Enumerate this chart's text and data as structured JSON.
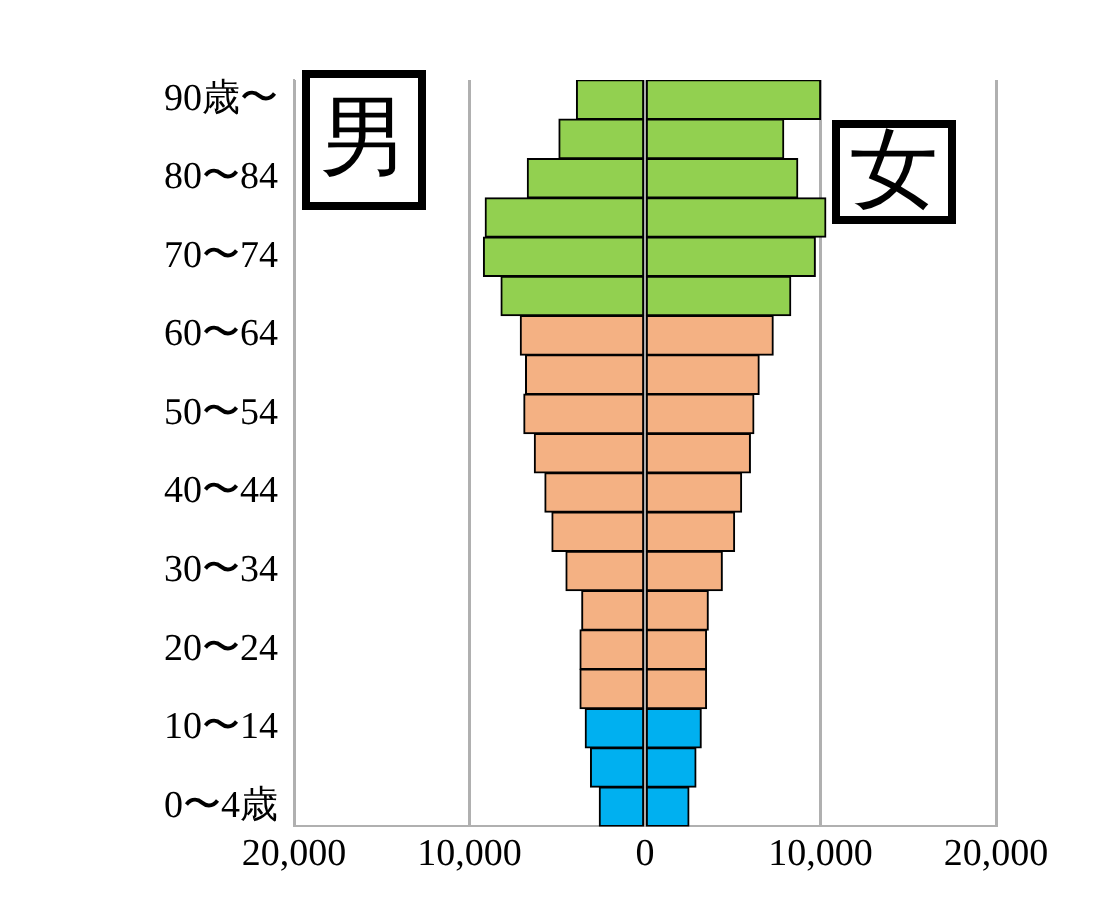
{
  "chart_data": {
    "type": "bar",
    "orientation": "horizontal",
    "stacked": true,
    "grid": "x",
    "legend": false,
    "categories": [
      "90歳〜",
      null,
      "80〜84",
      null,
      "70〜74",
      null,
      "60〜64",
      null,
      "50〜54",
      null,
      "40〜44",
      null,
      "30〜34",
      null,
      "20〜24",
      null,
      "10〜14",
      null,
      "0〜4歳"
    ],
    "series": [
      {
        "name": "男",
        "colors": [
          "#92d050",
          "#92d050",
          "#92d050",
          "#92d050",
          "#92d050",
          "#92d050",
          "#f4b183",
          "#f4b183",
          "#f4b183",
          "#f4b183",
          "#f4b183",
          "#f4b183",
          "#f4b183",
          "#f4b183",
          "#f4b183",
          "#f4b183",
          "#00b0f0",
          "#00b0f0",
          "#00b0f0"
        ],
        "values": [
          -3900,
          -4900,
          -6700,
          -9100,
          -9200,
          -8200,
          -7100,
          -6800,
          -6900,
          -6300,
          -5700,
          -5300,
          -4500,
          -3600,
          -3700,
          -3700,
          -3400,
          -3100,
          -2600
        ]
      },
      {
        "name": "女",
        "colors": [
          "#92d050",
          "#92d050",
          "#92d050",
          "#92d050",
          "#92d050",
          "#92d050",
          "#f4b183",
          "#f4b183",
          "#f4b183",
          "#f4b183",
          "#f4b183",
          "#f4b183",
          "#f4b183",
          "#f4b183",
          "#f4b183",
          "#f4b183",
          "#00b0f0",
          "#00b0f0",
          "#00b0f0"
        ],
        "values": [
          10000,
          7900,
          8700,
          10300,
          9700,
          8300,
          7300,
          6500,
          6200,
          6000,
          5500,
          5100,
          4400,
          3600,
          3500,
          3500,
          3200,
          2900,
          2500
        ]
      }
    ],
    "xlim": [
      -20000,
      20000
    ],
    "xticks": [
      {
        "value": -20000,
        "label": "20,000"
      },
      {
        "value": -10000,
        "label": "10,000"
      },
      0,
      {
        "value": 10000,
        "label": "10,000"
      },
      {
        "value": 20000,
        "label": "20,000"
      }
    ]
  }
}
